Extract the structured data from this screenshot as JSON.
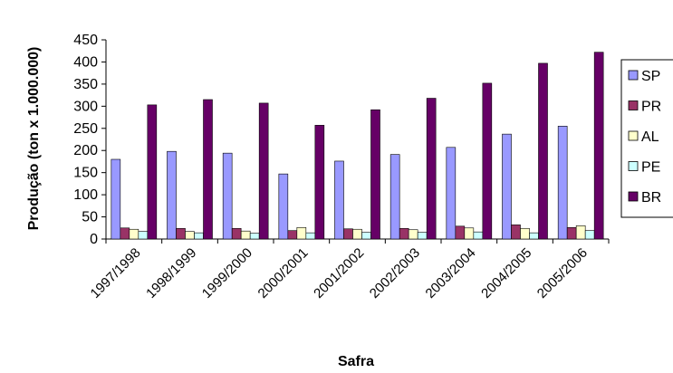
{
  "chart_data": {
    "type": "bar",
    "title": "",
    "xlabel": "Safra",
    "ylabel": "Produção (ton x 1.000.000)",
    "ylim": [
      0,
      450
    ],
    "yticks": [
      0,
      50,
      100,
      150,
      200,
      250,
      300,
      350,
      400,
      450
    ],
    "grid": false,
    "legend_position": "right",
    "categories": [
      "1997/1998",
      "1998/1999",
      "1999/2000",
      "2000/2001",
      "2001/2002",
      "2002/2003",
      "2003/2004",
      "2004/2005",
      "2005/2006"
    ],
    "series": [
      {
        "name": "SP",
        "color": "#9999ff",
        "values": [
          180,
          198,
          194,
          147,
          176,
          191,
          207,
          237,
          255
        ]
      },
      {
        "name": "PR",
        "color": "#993366",
        "values": [
          25,
          24,
          24,
          19,
          23,
          24,
          29,
          32,
          26
        ]
      },
      {
        "name": "AL",
        "color": "#ffffcc",
        "values": [
          22,
          17,
          18,
          26,
          22,
          21,
          25,
          24,
          30
        ]
      },
      {
        "name": "PE",
        "color": "#ccffff",
        "values": [
          17,
          14,
          13,
          14,
          15,
          15,
          16,
          14,
          19
        ]
      },
      {
        "name": "BR",
        "color": "#660066",
        "values": [
          303,
          315,
          307,
          257,
          292,
          318,
          352,
          397,
          422
        ]
      }
    ]
  }
}
